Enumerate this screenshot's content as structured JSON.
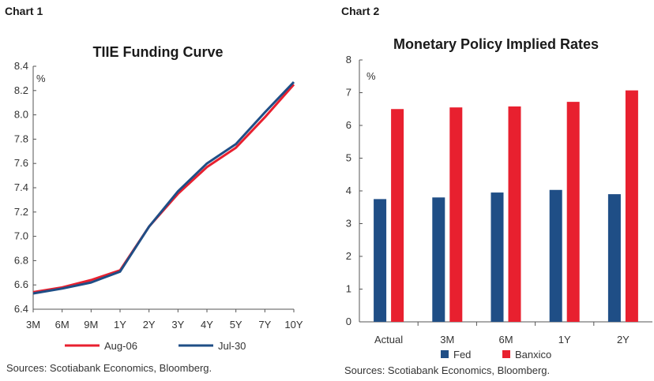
{
  "chart1": {
    "label": "Chart 1",
    "source": "Sources: Scotiabank Economics, Bloomberg."
  },
  "chart2": {
    "label": "Chart 2",
    "source": "Sources: Scotiabank Economics, Bloomberg."
  },
  "chart_data": [
    {
      "type": "line",
      "title": "TIIE Funding Curve",
      "ylabel": "%",
      "xlabel": "",
      "ylim": [
        6.4,
        8.4
      ],
      "yticks": [
        "6.4",
        "6.6",
        "6.8",
        "7.0",
        "7.2",
        "7.4",
        "7.6",
        "7.8",
        "8.0",
        "8.2",
        "8.4"
      ],
      "categories": [
        "3M",
        "6M",
        "9M",
        "1Y",
        "2Y",
        "3Y",
        "4Y",
        "5Y",
        "7Y",
        "10Y"
      ],
      "grid": false,
      "legend_position": "bottom",
      "series": [
        {
          "name": "Aug-06",
          "color": "#e8202f",
          "values": [
            6.54,
            6.58,
            6.64,
            6.72,
            7.08,
            7.35,
            7.57,
            7.73,
            7.98,
            8.25
          ]
        },
        {
          "name": "Jul-30",
          "color": "#1f4e86",
          "values": [
            6.53,
            6.57,
            6.62,
            6.71,
            7.08,
            7.37,
            7.6,
            7.76,
            8.02,
            8.27
          ]
        }
      ]
    },
    {
      "type": "bar",
      "title": "Monetary Policy Implied Rates",
      "ylabel": "%",
      "xlabel": "",
      "ylim": [
        0,
        8
      ],
      "yticks": [
        "0",
        "1",
        "2",
        "3",
        "4",
        "5",
        "6",
        "7",
        "8"
      ],
      "categories": [
        "Actual",
        "3M",
        "6M",
        "1Y",
        "2Y"
      ],
      "grid": false,
      "legend_position": "bottom",
      "series": [
        {
          "name": "Fed",
          "color": "#1f4e86",
          "values": [
            3.75,
            3.8,
            3.95,
            4.03,
            3.9
          ]
        },
        {
          "name": "Banxico",
          "color": "#e8202f",
          "values": [
            6.5,
            6.55,
            6.58,
            6.72,
            7.07
          ]
        }
      ]
    }
  ]
}
